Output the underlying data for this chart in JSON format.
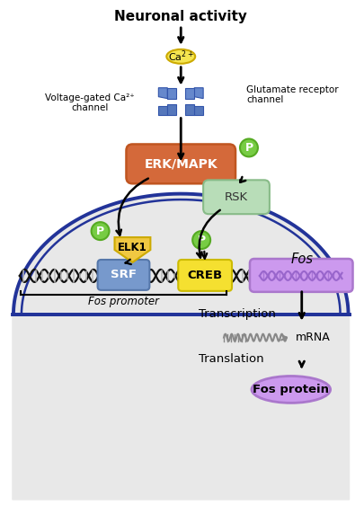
{
  "title": "Neuronal activity",
  "ca_label": "Ca$^{2+}$",
  "voltage_label": "Voltage-gated Ca²⁺\nchannel",
  "glutamate_label": "Glutamate receptor\nchannel",
  "erk_label": "ERK/MAPK",
  "erk_color": "#d4693a",
  "erk_edge": "#c05520",
  "rsk_label": "RSK",
  "rsk_color": "#b8ddb8",
  "rsk_edge": "#88bb88",
  "elk_label": "ELK1",
  "elk_color": "#f0c842",
  "elk_edge": "#ccaa00",
  "srf_label": "SRF",
  "srf_color": "#7799cc",
  "srf_edge": "#5577aa",
  "creb_label": "CREB",
  "creb_color": "#f5e030",
  "creb_edge": "#ccbb00",
  "p_color": "#77cc44",
  "p_edge": "#55aa22",
  "ca_color": "#f5e550",
  "ca_edge": "#ccaa00",
  "cell_fill": "#e8e8e8",
  "cell_border": "#223399",
  "channel_color_top": "#6688cc",
  "channel_color_bot": "#5577bb",
  "channel_edge": "#3355aa",
  "fos_gene_fill": "#cc99ee",
  "fos_gene_edge": "#aa77cc",
  "fos_label": "Fos",
  "fos_promoter_label": "Fos promoter",
  "transcription_label": "Transcription",
  "translation_label": "Translation",
  "mrna_label": "mRNA",
  "fos_protein_label": "Fos protein",
  "fos_protein_fill": "#cc99ee",
  "fos_protein_edge": "#aa77cc",
  "dna_color": "#111111",
  "dna_rung": "#bbbbbb"
}
